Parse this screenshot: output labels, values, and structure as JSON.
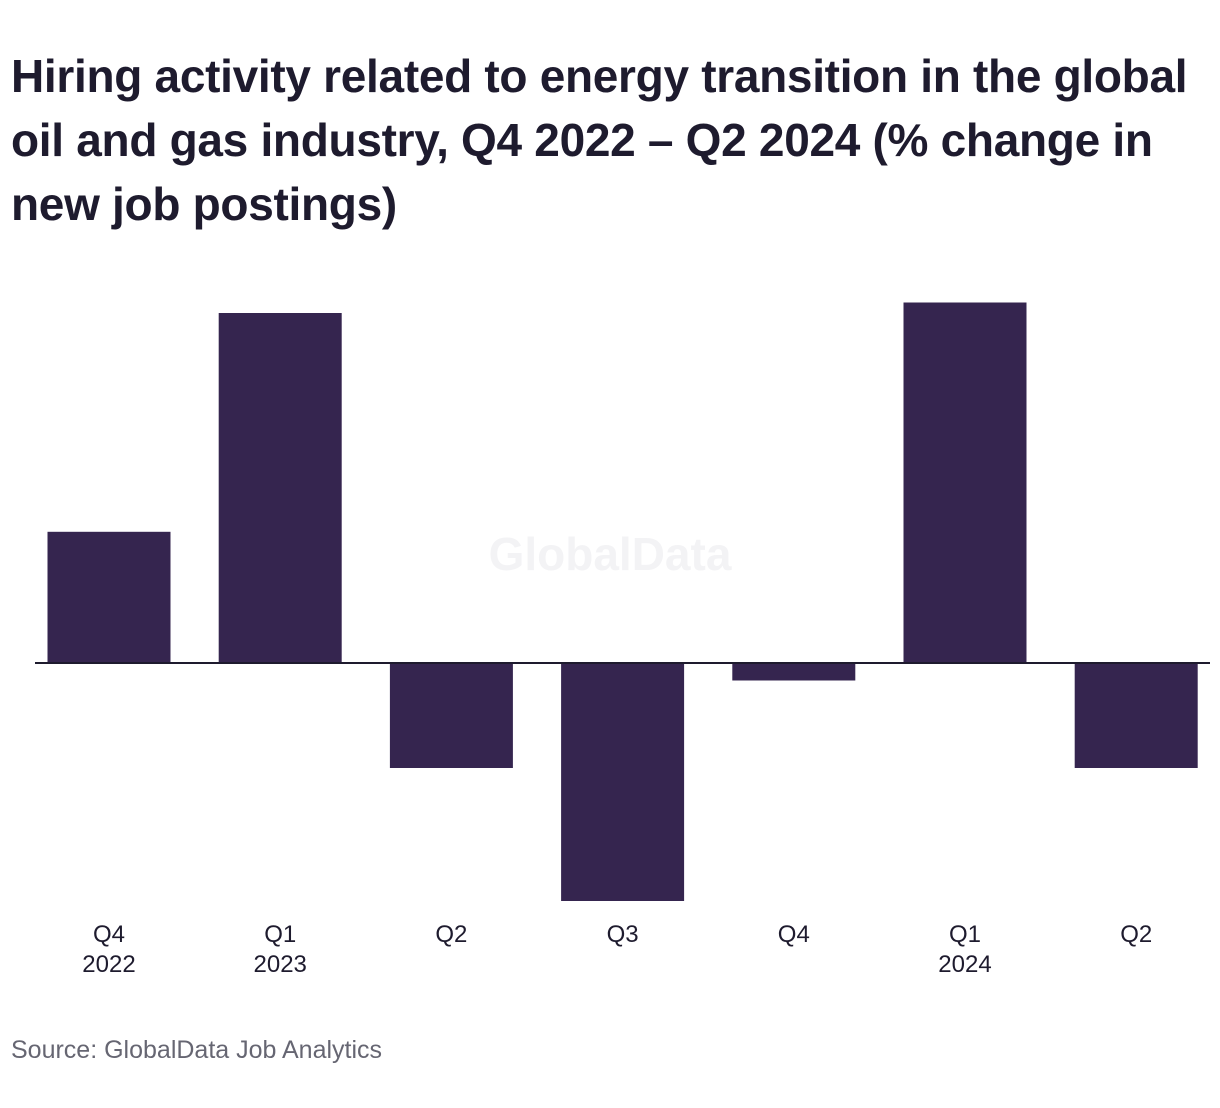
{
  "chart_data": {
    "type": "bar",
    "title": "Hiring activity related to energy transition in the global oil and gas industry, Q4 2022 – Q2 2024 (% change in new job postings)",
    "categories": [
      "Q4 2022",
      "Q1 2023",
      "Q2",
      "Q3",
      "Q4",
      "Q1 2024",
      "Q2"
    ],
    "category_lines": [
      [
        "Q4",
        "2022"
      ],
      [
        "Q1",
        "2023"
      ],
      [
        "Q2"
      ],
      [
        "Q3"
      ],
      [
        "Q4"
      ],
      [
        "Q1",
        "2024"
      ],
      [
        "Q2"
      ]
    ],
    "values": [
      37.5,
      100,
      -30,
      -68,
      -5,
      103,
      -30
    ],
    "ylim": [
      -70,
      105
    ],
    "xlabel": "",
    "ylabel": "",
    "grid": false,
    "legend": "none",
    "bar_color": "#35254f",
    "axis_color": "#1e1b2e"
  },
  "watermark": "GlobalData",
  "source": "Source: GlobalData Job Analytics"
}
